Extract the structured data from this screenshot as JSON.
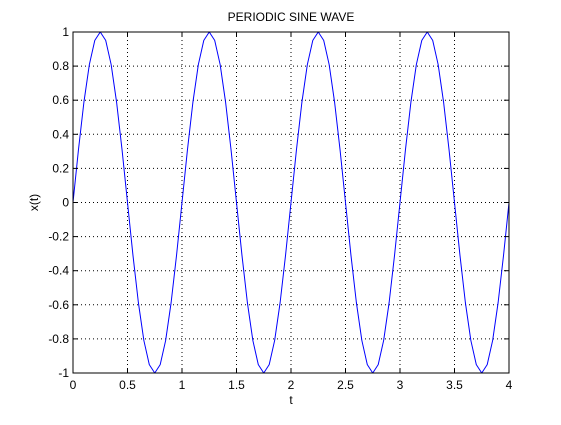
{
  "chart_data": {
    "type": "line",
    "title": "PERIODIC SINE WAVE",
    "xlabel": "t",
    "ylabel": "x(t)",
    "xlim": [
      0,
      4
    ],
    "ylim": [
      -1,
      1
    ],
    "xticks": [
      0,
      0.5,
      1,
      1.5,
      2,
      2.5,
      3,
      3.5,
      4
    ],
    "xtick_labels": [
      "0",
      "0.5",
      "1",
      "1.5",
      "2",
      "2.5",
      "3",
      "3.5",
      "4"
    ],
    "yticks": [
      -1,
      -0.8,
      -0.6,
      -0.4,
      -0.2,
      0,
      0.2,
      0.4,
      0.6,
      0.8,
      1
    ],
    "ytick_labels": [
      "-1",
      "-0.8",
      "-0.6",
      "-0.4",
      "-0.2",
      "0",
      "0.2",
      "0.4",
      "0.6",
      "0.8",
      "1"
    ],
    "grid": true,
    "series": [
      {
        "color": "#0000ff",
        "x": [
          0,
          0.05,
          0.1,
          0.15,
          0.2,
          0.25,
          0.3,
          0.35,
          0.4,
          0.45,
          0.5,
          0.55,
          0.6,
          0.65,
          0.7,
          0.75,
          0.8,
          0.85,
          0.9,
          0.95,
          1,
          1.05,
          1.1,
          1.15,
          1.2,
          1.25,
          1.3,
          1.35,
          1.4,
          1.45,
          1.5,
          1.55,
          1.6,
          1.65,
          1.7,
          1.75,
          1.8,
          1.85,
          1.9,
          1.95,
          2,
          2.05,
          2.1,
          2.15,
          2.2,
          2.25,
          2.3,
          2.35,
          2.4,
          2.45,
          2.5,
          2.55,
          2.6,
          2.65,
          2.7,
          2.75,
          2.8,
          2.85,
          2.9,
          2.95,
          3,
          3.05,
          3.1,
          3.15,
          3.2,
          3.25,
          3.3,
          3.35,
          3.4,
          3.45,
          3.5,
          3.55,
          3.6,
          3.65,
          3.7,
          3.75,
          3.8,
          3.85,
          3.9,
          3.95,
          4
        ],
        "y": [
          0,
          0.309,
          0.588,
          0.809,
          0.951,
          1,
          0.951,
          0.809,
          0.588,
          0.309,
          0,
          -0.309,
          -0.588,
          -0.809,
          -0.951,
          -1,
          -0.951,
          -0.809,
          -0.588,
          -0.309,
          0,
          0.309,
          0.588,
          0.809,
          0.951,
          1,
          0.951,
          0.809,
          0.588,
          0.309,
          0,
          -0.309,
          -0.588,
          -0.809,
          -0.951,
          -1,
          -0.951,
          -0.809,
          -0.588,
          -0.309,
          0,
          0.309,
          0.588,
          0.809,
          0.951,
          1,
          0.951,
          0.809,
          0.588,
          0.309,
          0,
          -0.309,
          -0.588,
          -0.809,
          -0.951,
          -1,
          -0.951,
          -0.809,
          -0.588,
          -0.309,
          0,
          0.309,
          0.588,
          0.809,
          0.951,
          1,
          0.951,
          0.809,
          0.588,
          0.309,
          0,
          -0.309,
          -0.588,
          -0.809,
          -0.951,
          -1,
          -0.951,
          -0.809,
          -0.588,
          -0.309,
          0
        ]
      }
    ]
  }
}
